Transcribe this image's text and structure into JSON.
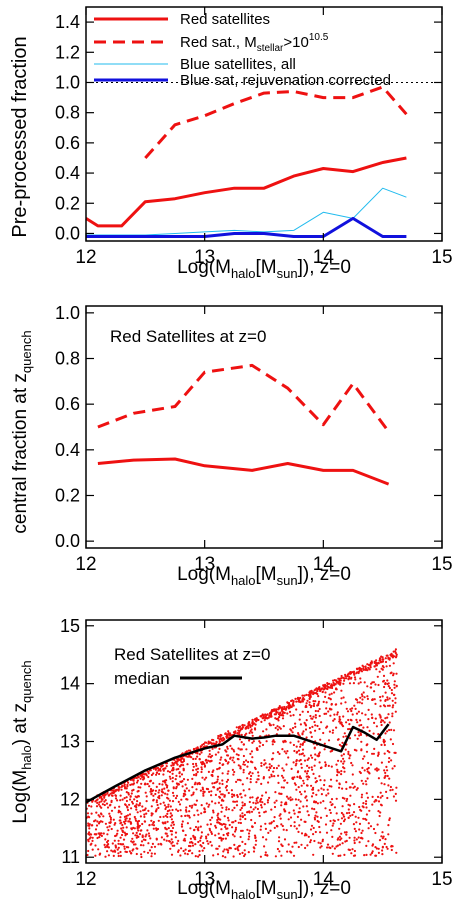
{
  "chart_data": [
    {
      "type": "line",
      "xlabel": "Log(M_halo[M_sun]), z=0",
      "ylabel": "Pre-processed fraction",
      "xlim": [
        12,
        15
      ],
      "ylim": [
        -0.05,
        1.5
      ],
      "xticks": [
        "12",
        "13",
        "14",
        "15"
      ],
      "yticks": [
        "0.0",
        "0.2",
        "0.4",
        "0.6",
        "0.8",
        "1.0",
        "1.2",
        "1.4"
      ],
      "reference_line": 1.0,
      "legend_position": "top",
      "series": [
        {
          "name": "Red satellites",
          "color": "#ee1111",
          "style": "solid",
          "width": 3,
          "x": [
            12.0,
            12.1,
            12.3,
            12.5,
            12.75,
            13.0,
            13.25,
            13.5,
            13.75,
            14.0,
            14.25,
            14.5,
            14.7
          ],
          "y": [
            0.1,
            0.05,
            0.05,
            0.21,
            0.23,
            0.27,
            0.3,
            0.3,
            0.38,
            0.43,
            0.41,
            0.47,
            0.5
          ]
        },
        {
          "name": "Red sat., M_stellar>10^10.5",
          "color": "#ee1111",
          "style": "dashed",
          "width": 3,
          "x": [
            12.5,
            12.75,
            13.0,
            13.25,
            13.5,
            13.75,
            14.0,
            14.25,
            14.5,
            14.7
          ],
          "y": [
            0.5,
            0.72,
            0.78,
            0.86,
            0.93,
            0.94,
            0.9,
            0.9,
            0.97,
            0.79
          ]
        },
        {
          "name": "Blue satellites, all",
          "color": "#22bbee",
          "style": "solid",
          "width": 1,
          "x": [
            12.0,
            12.5,
            12.75,
            13.0,
            13.25,
            13.5,
            13.75,
            14.0,
            14.25,
            14.5,
            14.7
          ],
          "y": [
            -0.01,
            -0.01,
            0.0,
            0.01,
            0.02,
            0.01,
            0.02,
            0.14,
            0.1,
            0.3,
            0.24
          ]
        },
        {
          "name": "Blue sat, rejuvenation corrected",
          "color": "#1111dd",
          "style": "solid",
          "width": 3,
          "x": [
            12.0,
            12.5,
            12.75,
            13.0,
            13.25,
            13.5,
            13.75,
            14.0,
            14.25,
            14.5,
            14.7
          ],
          "y": [
            -0.02,
            -0.02,
            -0.02,
            -0.02,
            0.0,
            0.0,
            -0.02,
            -0.02,
            0.1,
            -0.02,
            -0.02
          ]
        }
      ]
    },
    {
      "type": "line",
      "xlabel": "Log(M_halo[M_sun]), z=0",
      "ylabel": "central fraction at z_quench",
      "xlim": [
        12,
        15
      ],
      "ylim": [
        -0.03,
        1.03
      ],
      "xticks": [
        "12",
        "13",
        "14",
        "15"
      ],
      "yticks": [
        "0.0",
        "0.2",
        "0.4",
        "0.6",
        "0.8",
        "1.0"
      ],
      "annotation": "Red Satellites at z=0",
      "series": [
        {
          "color": "#ee1111",
          "style": "solid",
          "width": 3,
          "x": [
            12.1,
            12.4,
            12.75,
            13.0,
            13.4,
            13.7,
            14.0,
            14.25,
            14.55
          ],
          "y": [
            0.34,
            0.355,
            0.36,
            0.33,
            0.31,
            0.34,
            0.31,
            0.31,
            0.25
          ]
        },
        {
          "color": "#ee1111",
          "style": "dashed",
          "width": 3,
          "x": [
            12.1,
            12.4,
            12.75,
            13.0,
            13.4,
            13.7,
            14.0,
            14.25,
            14.55
          ],
          "y": [
            0.5,
            0.56,
            0.59,
            0.74,
            0.77,
            0.67,
            0.51,
            0.69,
            0.48
          ]
        }
      ]
    },
    {
      "type": "scatter",
      "xlabel": "Log(M_halo[M_sun]), z=0",
      "ylabel": "Log(M_halo) at z_quench",
      "xlim": [
        12,
        15
      ],
      "ylim": [
        10.9,
        15.1
      ],
      "xticks": [
        "12",
        "13",
        "14",
        "15"
      ],
      "yticks": [
        "11",
        "12",
        "13",
        "14",
        "15"
      ],
      "annotation": "Red Satellites at z=0",
      "legend": "median",
      "points_color": "#ee1111",
      "median": {
        "color": "#000000",
        "x": [
          12.0,
          12.25,
          12.5,
          12.75,
          13.0,
          13.15,
          13.25,
          13.4,
          13.5,
          13.6,
          13.75,
          14.0,
          14.15,
          14.25,
          14.35,
          14.45,
          14.55
        ],
        "y": [
          11.95,
          12.23,
          12.5,
          12.72,
          12.88,
          12.95,
          13.1,
          13.05,
          13.07,
          13.1,
          13.1,
          12.93,
          12.83,
          13.25,
          13.15,
          13.03,
          13.3
        ]
      }
    }
  ]
}
